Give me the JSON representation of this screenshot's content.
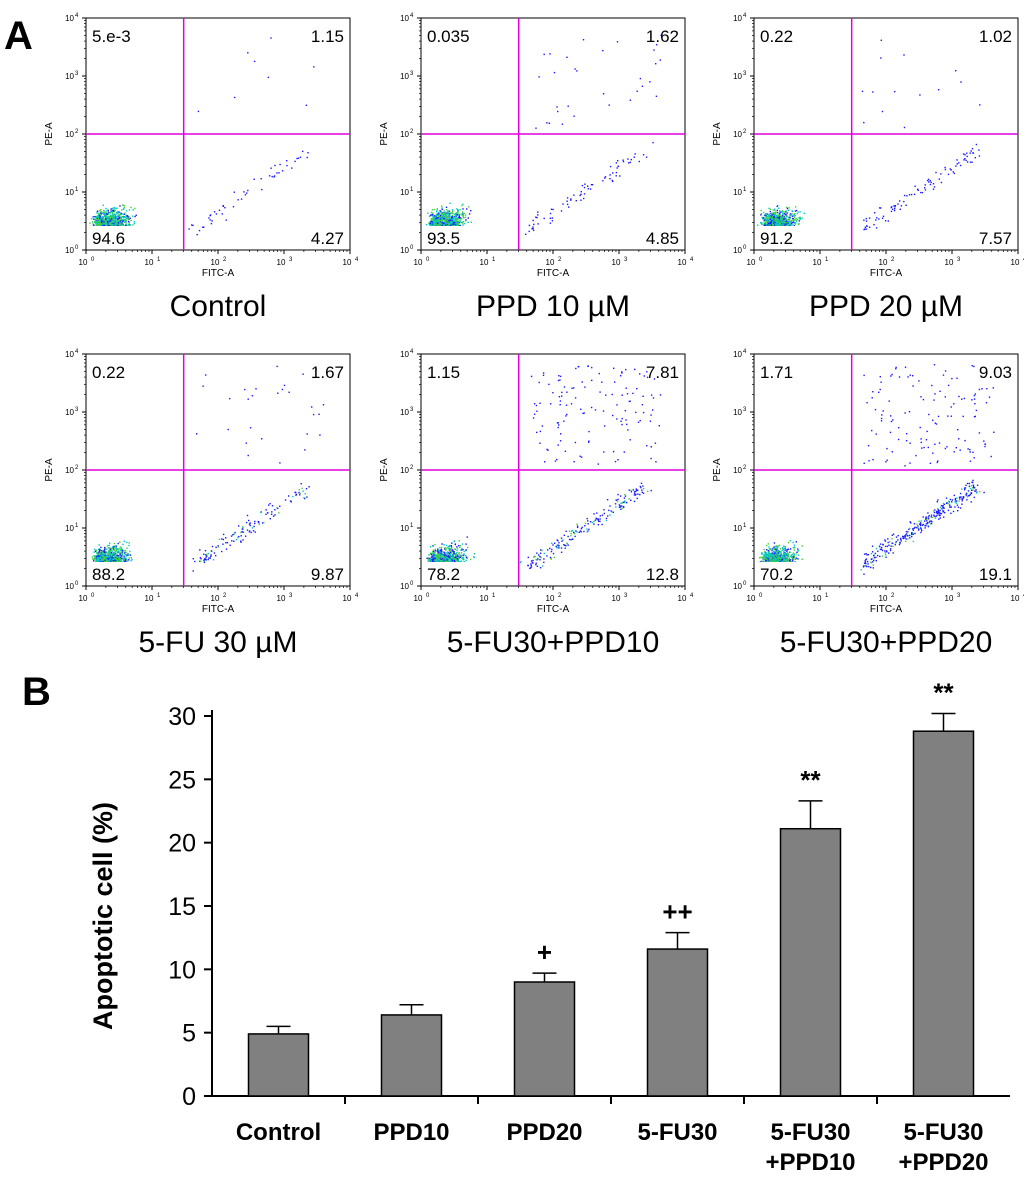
{
  "panel_labels": {
    "a": "A",
    "b": "B"
  },
  "flow_panels": [
    {
      "caption": "Control",
      "q_ul": "5.e-3",
      "q_ur": "1.15",
      "q_ll": "94.6",
      "q_lr": "4.27",
      "xlabel": "FITC-A",
      "ylabel": "PE-A"
    },
    {
      "caption": "PPD 10 µM",
      "q_ul": "0.035",
      "q_ur": "1.62",
      "q_ll": "93.5",
      "q_lr": "4.85",
      "xlabel": "FITC-A",
      "ylabel": "PE-A"
    },
    {
      "caption": "PPD 20 µM",
      "q_ul": "0.22",
      "q_ur": "1.02",
      "q_ll": "91.2",
      "q_lr": "7.57",
      "xlabel": "FITC-A",
      "ylabel": "PE-A"
    },
    {
      "caption": "5-FU 30 µM",
      "q_ul": "0.22",
      "q_ur": "1.67",
      "q_ll": "88.2",
      "q_lr": "9.87",
      "xlabel": "FITC-A",
      "ylabel": "PE-A"
    },
    {
      "caption": "5-FU30+PPD10",
      "q_ul": "1.15",
      "q_ur": "7.81",
      "q_ll": "78.2",
      "q_lr": "12.8",
      "xlabel": "FITC-A",
      "ylabel": "PE-A"
    },
    {
      "caption": "5-FU30+PPD20",
      "q_ul": "1.71",
      "q_ur": "9.03",
      "q_ll": "70.2",
      "q_lr": "19.1",
      "xlabel": "FITC-A",
      "ylabel": "PE-A"
    }
  ],
  "flow_axis_ticks": [
    "10",
    "10",
    "10",
    "10",
    "10"
  ],
  "flow_axis_exponents": [
    "0",
    "1",
    "2",
    "3",
    "4"
  ],
  "colors": {
    "gate": "#e000e0",
    "bar": "#808080",
    "scatter_low": "#1a1aff",
    "scatter_mid": "#00c8c8",
    "scatter_high": "#40d040"
  },
  "chart_data": {
    "type": "bar",
    "categories": [
      [
        "Control"
      ],
      [
        "PPD10"
      ],
      [
        "PPD20"
      ],
      [
        "5-FU30"
      ],
      [
        "5-FU30",
        "+PPD10"
      ],
      [
        "5-FU30",
        "+PPD20"
      ]
    ],
    "values": [
      4.9,
      6.4,
      9.0,
      11.6,
      21.1,
      28.8
    ],
    "errors": [
      0.6,
      0.8,
      0.7,
      1.3,
      2.2,
      1.4
    ],
    "annotations": [
      "",
      "",
      "+",
      "++",
      "**",
      "**"
    ],
    "ylabel": "Apoptotic cell (%)",
    "ylim": [
      0,
      30
    ],
    "yticks": [
      0,
      5,
      10,
      15,
      20,
      25,
      30
    ],
    "grid": false
  }
}
